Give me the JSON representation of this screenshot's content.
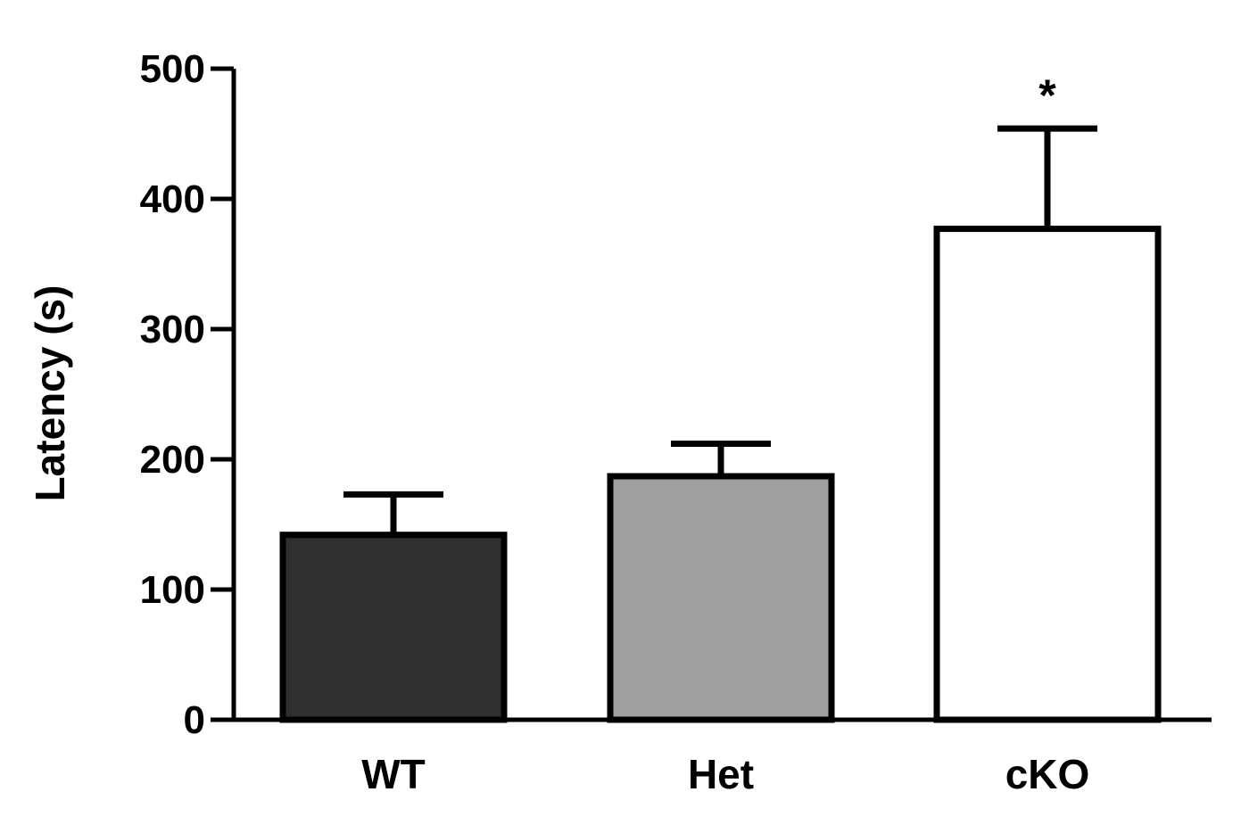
{
  "chart_data": {
    "type": "bar",
    "title": "",
    "xlabel": "",
    "ylabel": "Latency (s)",
    "ylim": [
      0,
      500
    ],
    "yticks": [
      0,
      100,
      200,
      300,
      400,
      500
    ],
    "grid": false,
    "legend": "none",
    "categories": [
      "WT",
      "Het",
      "cKO"
    ],
    "values": [
      142,
      187,
      377
    ],
    "errors": [
      31,
      25,
      77
    ],
    "colors": [
      "#2f2f2f",
      "#a0a0a0",
      "#ffffff"
    ],
    "annotations": [
      "",
      "",
      "*"
    ],
    "axis_color": "#000000"
  }
}
